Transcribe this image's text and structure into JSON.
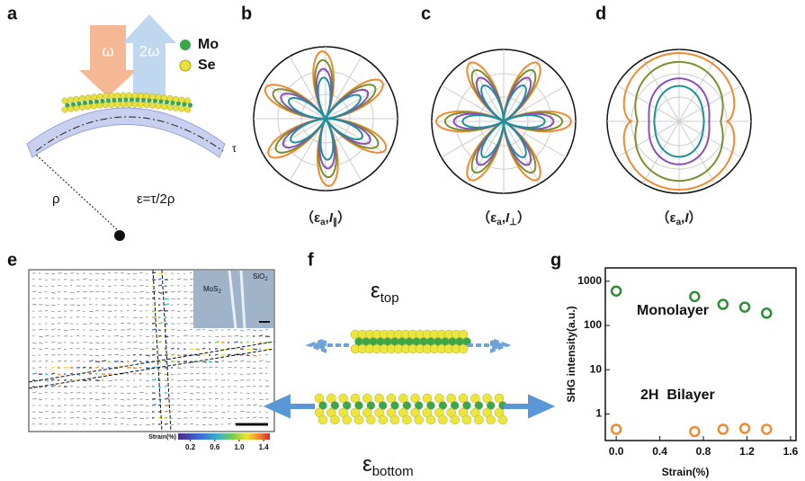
{
  "panel_labels": [
    "a",
    "b",
    "c",
    "d",
    "e",
    "f",
    "g"
  ],
  "panel_a": {
    "omega": "ω",
    "two_omega": "2ω",
    "legend": [
      "Mo",
      "Se"
    ],
    "rho": "ρ",
    "formula": "ε=τ/2ρ",
    "tau": "τ"
  },
  "polar_captions": [
    [
      "（",
      "ε",
      "a",
      ",",
      "I",
      "∥",
      "）"
    ],
    [
      "（",
      "ε",
      "a",
      ",",
      "I",
      "⊥",
      "）"
    ],
    [
      "（",
      "ε",
      "a",
      ",",
      "I",
      "）"
    ]
  ],
  "panel_e": {
    "inset": {
      "mos": "MoS",
      "mos_sub": "2",
      "sio": "SiO",
      "sio_sub": "2"
    },
    "colorbar": {
      "label": "Strain(%)",
      "lim": [
        0,
        1.5
      ],
      "ticks": [
        0.2,
        0.6,
        {
          "value": 1,
          "label": "1.0"
        },
        1.4
      ]
    }
  },
  "panel_f": {
    "top": {
      "symbol": "ε",
      "sub": "top"
    },
    "bottom": {
      "symbol": "ε",
      "sub": "bottom"
    }
  },
  "chart_data": {
    "type": "scatter",
    "xlabel": "Strain(%)",
    "ylabel": "SHG intensity(a.u.)",
    "x": [
      0,
      0.72,
      0.98,
      1.18,
      1.38
    ],
    "series": [
      {
        "name": "Monolayer",
        "color": "#2e8b3a",
        "values": [
          600,
          450,
          300,
          260,
          190
        ]
      },
      {
        "name": "2H  Bilayer",
        "color": "#f08a30",
        "values": [
          0.45,
          0.4,
          0.45,
          0.47,
          0.45
        ]
      }
    ],
    "xlim": [
      -0.1,
      1.65
    ],
    "xticks": [
      {
        "value": 0,
        "label": "0.0"
      },
      0.4,
      0.8,
      1.2,
      1.6
    ],
    "ylim": [
      0.25,
      2000
    ],
    "yticks": [
      1,
      10,
      100,
      1000
    ],
    "log_y": true
  }
}
